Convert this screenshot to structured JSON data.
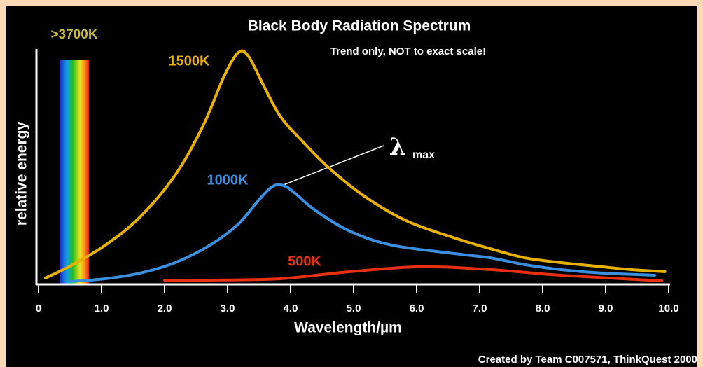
{
  "chart_data": {
    "type": "line",
    "title": "Black Body Radiation Spectrum",
    "subtitle": "Trend only, NOT to exact scale!",
    "x_label": "Wavelength/µm",
    "y_label": "relative energy",
    "spectrum_label": ">3700K",
    "annotation": {
      "symbol": "λ",
      "subscript": "max"
    },
    "credit": "Created by Team C007571, ThinkQuest 2000",
    "xlim": [
      0,
      10
    ],
    "ylim": [
      0,
      100
    ],
    "xticks": [
      0,
      {
        "value": 1,
        "label": "1.0"
      },
      {
        "value": 2,
        "label": "2.0"
      },
      {
        "value": 3,
        "label": "3.0"
      },
      {
        "value": 4,
        "label": "4.0"
      },
      {
        "value": 5,
        "label": "5.0"
      },
      {
        "value": 6,
        "label": "6.0"
      },
      {
        "value": 7,
        "label": "7.0"
      },
      {
        "value": 8,
        "label": "8.0"
      },
      {
        "value": 9,
        "label": "9.0"
      },
      {
        "value": 10,
        "label": "10.0"
      }
    ],
    "series": [
      {
        "name": "1500K",
        "color": "#e8b000",
        "x": [
          0.11,
          0.5,
          1.06,
          1.61,
          2.17,
          2.61,
          2.94,
          3.17,
          3.33,
          3.56,
          3.83,
          4.17,
          4.61,
          5.17,
          5.83,
          6.61,
          7.17,
          7.72,
          8.28,
          8.83,
          9.39,
          9.94
        ],
        "values": [
          2.4,
          7.5,
          16.4,
          28.4,
          46.3,
          67.2,
          88.1,
          98.5,
          97,
          85.1,
          71.6,
          61.2,
          49.3,
          37.3,
          26.9,
          19.4,
          14.9,
          11,
          9,
          7.5,
          6,
          5.1
        ]
      },
      {
        "name": "1000K",
        "color": "#3a8fe0",
        "x": [
          0.5,
          1.06,
          1.61,
          2.17,
          2.72,
          3.17,
          3.5,
          3.72,
          3.89,
          4.06,
          4.39,
          4.94,
          5.61,
          6.61,
          7.17,
          7.72,
          8.28,
          8.94,
          9.78
        ],
        "values": [
          0.9,
          2.1,
          4.5,
          9,
          16.4,
          25.4,
          35.8,
          41.5,
          41.8,
          38.8,
          31.3,
          22.4,
          16.4,
          12.8,
          11,
          8.1,
          6,
          4.5,
          3.6
        ]
      },
      {
        "name": "500K",
        "color": "#e83010",
        "x": [
          2.0,
          2.72,
          3.83,
          4.94,
          6.06,
          7.17,
          8.28,
          9.89
        ],
        "values": [
          1.5,
          1.5,
          2.1,
          5.1,
          7.2,
          6,
          3.6,
          1.2
        ]
      }
    ]
  }
}
